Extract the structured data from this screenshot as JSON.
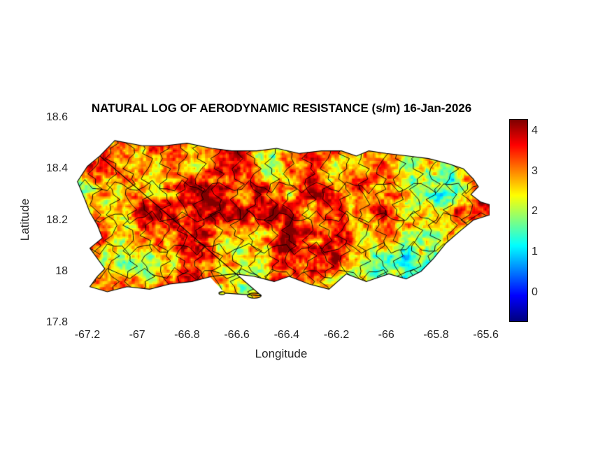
{
  "chart_data": {
    "type": "heatmap",
    "title": "NATURAL LOG OF AERODYNAMIC RESISTANCE (s/m) 16-Jan-2026",
    "units": "s/m",
    "date": "16-Jan-2026",
    "xlabel": "Longitude",
    "ylabel": "Latitude",
    "xlim": [
      -67.256,
      -65.585
    ],
    "ylim": [
      17.8,
      18.6
    ],
    "x_tick_values": [
      -67.2,
      -67.0,
      -66.8,
      -66.6,
      -66.4,
      -66.2,
      -66.0,
      -65.8,
      -65.6
    ],
    "x_tick_labels": [
      "-67.2",
      "-67",
      "-66.8",
      "-66.6",
      "-66.4",
      "-66.2",
      "-66",
      "-65.8",
      "-65.6"
    ],
    "y_tick_values": [
      18.6,
      18.4,
      18.2,
      18.0,
      17.8
    ],
    "y_tick_labels": [
      "18.6",
      "18.4",
      "18.2",
      "18",
      "17.8"
    ],
    "colormap": "jet",
    "colormap_stops": [
      [
        0,
        "#000080"
      ],
      [
        0.125,
        "#0000ff"
      ],
      [
        0.375,
        "#00ffff"
      ],
      [
        0.625,
        "#ffff00"
      ],
      [
        0.875,
        "#ff0000"
      ],
      [
        1,
        "#800000"
      ]
    ],
    "clim": [
      -0.7,
      4.3
    ],
    "colorbar_tick_values": [
      0,
      1,
      2,
      3,
      4
    ],
    "colorbar_tick_labels": [
      "0",
      "1",
      "2",
      "3",
      "4"
    ],
    "legend_position": "right-colorbar",
    "grid_lines": false,
    "region": "Puerto Rico",
    "grid": {
      "lon_min": -67.25,
      "lon_max": -65.6,
      "lat_min": 17.9,
      "lat_max": 18.55,
      "values": [
        [
          2.6,
          2.8,
          3.0,
          2.9,
          3.0,
          3.1,
          2.9,
          3.0,
          2.8,
          3.0,
          3.1,
          2.9,
          3.0,
          2.8,
          2.9,
          3.0,
          2.8,
          2.9,
          3.0,
          2.8,
          2.7,
          2.6,
          2.8,
          2.9,
          2.8,
          2.7
        ],
        [
          2.4,
          2.8,
          3.2,
          3.0,
          2.8,
          3.1,
          3.3,
          2.9,
          2.7,
          3.0,
          3.2,
          2.8,
          2.6,
          2.9,
          3.1,
          2.8,
          3.0,
          3.2,
          2.9,
          2.7,
          2.8,
          2.5,
          2.2,
          2.6,
          2.9,
          2.8
        ],
        [
          2.2,
          2.5,
          2.9,
          3.2,
          3.0,
          2.7,
          3.1,
          3.3,
          3.0,
          2.8,
          3.2,
          3.0,
          2.7,
          3.0,
          3.3,
          3.1,
          2.9,
          3.2,
          3.0,
          2.8,
          2.4,
          1.6,
          1.4,
          2.0,
          2.8,
          3.0
        ],
        [
          2.5,
          2.2,
          2.6,
          3.0,
          3.3,
          3.1,
          2.8,
          3.2,
          3.4,
          3.1,
          2.9,
          3.3,
          3.1,
          2.8,
          3.1,
          3.4,
          3.2,
          3.0,
          3.3,
          3.1,
          2.6,
          1.8,
          1.5,
          2.2,
          3.0,
          3.2
        ],
        [
          2.8,
          2.4,
          2.2,
          2.7,
          3.1,
          3.4,
          3.2,
          2.9,
          3.3,
          3.5,
          3.2,
          3.0,
          3.4,
          3.2,
          2.9,
          3.2,
          3.5,
          3.3,
          3.1,
          3.4,
          3.0,
          2.6,
          2.3,
          2.7,
          3.1,
          3.0
        ],
        [
          2.6,
          2.8,
          2.4,
          2.3,
          2.8,
          3.2,
          3.5,
          3.3,
          3.7,
          3.4,
          3.2,
          2.9,
          3.3,
          3.5,
          3.2,
          3.0,
          3.4,
          3.2,
          3.0,
          3.3,
          3.1,
          2.8,
          2.5,
          2.4,
          2.2,
          2.0
        ],
        [
          2.4,
          2.6,
          2.8,
          2.5,
          2.4,
          2.9,
          3.3,
          3.6,
          3.7,
          3.1,
          2.8,
          3.2,
          3.4,
          3.1,
          2.9,
          3.3,
          3.1,
          2.2,
          1.9,
          1.8,
          2.0,
          2.4,
          2.0,
          1.8,
          1.6,
          1.5
        ],
        [
          2.2,
          2.4,
          2.6,
          2.8,
          2.5,
          2.6,
          3.0,
          3.4,
          3.1,
          2.8,
          2.5,
          2.9,
          3.1,
          2.8,
          2.6,
          3.0,
          2.2,
          1.9,
          1.8,
          2.0,
          2.1,
          1.8,
          1.5,
          1.4,
          1.5,
          1.6
        ],
        [
          2.0,
          2.2,
          2.4,
          2.6,
          2.4,
          2.5,
          2.8,
          3.0,
          2.8,
          2.6,
          2.4,
          2.7,
          2.9,
          2.6,
          2.4,
          2.7,
          2.5,
          2.4,
          2.6,
          2.4,
          2.0,
          1.7,
          1.4,
          1.3,
          1.4,
          1.5
        ]
      ]
    },
    "coastline": [
      [
        -67.15,
        18.45
      ],
      [
        -67.09,
        18.51
      ],
      [
        -66.98,
        18.49
      ],
      [
        -66.89,
        18.49
      ],
      [
        -66.8,
        18.5
      ],
      [
        -66.7,
        18.48
      ],
      [
        -66.62,
        18.47
      ],
      [
        -66.52,
        18.47
      ],
      [
        -66.44,
        18.48
      ],
      [
        -66.35,
        18.46
      ],
      [
        -66.26,
        18.47
      ],
      [
        -66.18,
        18.47
      ],
      [
        -66.12,
        18.45
      ],
      [
        -66.07,
        18.47
      ],
      [
        -66.0,
        18.46
      ],
      [
        -65.91,
        18.45
      ],
      [
        -65.83,
        18.44
      ],
      [
        -65.75,
        18.42
      ],
      [
        -65.69,
        18.4
      ],
      [
        -65.65,
        18.36
      ],
      [
        -65.63,
        18.33
      ],
      [
        -65.66,
        18.3
      ],
      [
        -65.62,
        18.27
      ],
      [
        -65.585,
        18.26
      ],
      [
        -65.585,
        18.22
      ],
      [
        -65.65,
        18.2
      ],
      [
        -65.7,
        18.16
      ],
      [
        -65.76,
        18.11
      ],
      [
        -65.81,
        18.05
      ],
      [
        -65.86,
        18.0
      ],
      [
        -65.92,
        17.97
      ],
      [
        -65.99,
        17.99
      ],
      [
        -66.08,
        17.96
      ],
      [
        -66.16,
        17.99
      ],
      [
        -66.23,
        17.93
      ],
      [
        -66.31,
        17.95
      ],
      [
        -66.39,
        17.98
      ],
      [
        -66.45,
        17.96
      ],
      [
        -66.53,
        17.98
      ],
      [
        -66.61,
        17.99
      ],
      [
        -66.7,
        17.98
      ],
      [
        -66.78,
        17.96
      ],
      [
        -66.87,
        17.95
      ],
      [
        -66.95,
        17.93
      ],
      [
        -67.04,
        17.94
      ],
      [
        -67.12,
        17.92
      ],
      [
        -67.19,
        17.94
      ],
      [
        -67.16,
        17.98
      ],
      [
        -67.13,
        18.01
      ],
      [
        -67.16,
        18.05
      ],
      [
        -67.19,
        18.09
      ],
      [
        -67.14,
        18.13
      ],
      [
        -67.16,
        18.18
      ],
      [
        -67.19,
        18.23
      ],
      [
        -67.21,
        18.28
      ],
      [
        -67.24,
        18.35
      ],
      [
        -67.2,
        18.41
      ]
    ],
    "islets": [
      {
        "lon": -66.53,
        "lat": 17.905,
        "rlon": 0.028,
        "rlat": 0.01
      },
      {
        "lon": -66.66,
        "lat": 17.915,
        "rlon": 0.012,
        "rlat": 0.006
      }
    ],
    "boundaries": {
      "show": true,
      "vertical_lons": [
        -67.17,
        -67.1,
        -67.03,
        -66.96,
        -66.89,
        -66.82,
        -66.75,
        -66.68,
        -66.6,
        -66.53,
        -66.46,
        -66.39,
        -66.31,
        -66.24,
        -66.17,
        -66.09,
        -66.02,
        -65.95,
        -65.88,
        -65.81,
        -65.74,
        -65.67
      ],
      "horizontal_lats": [
        18.33,
        18.21,
        18.09,
        17.99
      ]
    },
    "colors": {
      "background": "#ffffff",
      "title_text": "#000000",
      "axis_text": "#262626",
      "boundary_line": "#000000"
    }
  }
}
